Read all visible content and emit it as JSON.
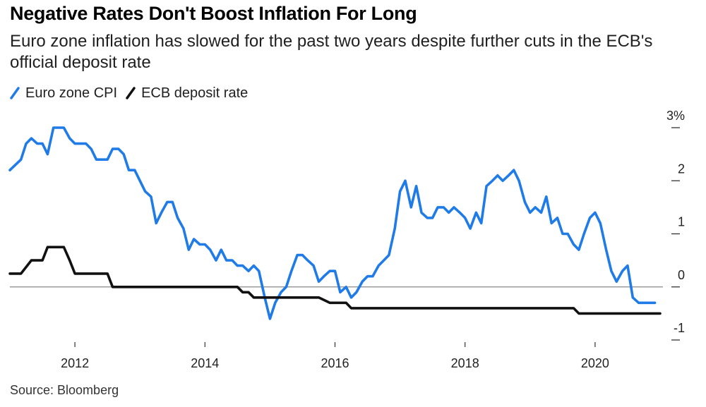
{
  "title": "Negative Rates Don't Boost Inflation For Long",
  "subtitle": "Euro zone inflation has slowed for the past two years despite further cuts in the ECB's official deposit rate",
  "source": "Source: Bloomberg",
  "colors": {
    "cpi": "#1f7be8",
    "rate": "#111111",
    "zero_line": "#888888",
    "axis": "#333333"
  },
  "chart_data": {
    "type": "line",
    "title": "Negative Rates Don't Boost Inflation For Long",
    "xlabel": "",
    "ylabel": "",
    "xlim": [
      2011.0,
      2021.0
    ],
    "ylim": [
      -1.0,
      3.0
    ],
    "x_ticks": [
      2012,
      2014,
      2016,
      2018,
      2020
    ],
    "x_tick_labels": [
      "2012",
      "2014",
      "2016",
      "2018",
      "2020"
    ],
    "y_ticks": [
      3,
      2,
      1,
      0,
      -1
    ],
    "y_tick_labels": [
      "3%",
      "2",
      "1",
      "0",
      "-1"
    ],
    "grid": false,
    "legend_position": "top-left",
    "series": [
      {
        "name": "Euro zone CPI",
        "x": [
          2011.0,
          2011.17,
          2011.25,
          2011.33,
          2011.42,
          2011.5,
          2011.58,
          2011.67,
          2011.75,
          2011.83,
          2011.92,
          2012.0,
          2012.08,
          2012.17,
          2012.25,
          2012.33,
          2012.42,
          2012.5,
          2012.58,
          2012.67,
          2012.75,
          2012.83,
          2012.92,
          2013.0,
          2013.08,
          2013.17,
          2013.25,
          2013.33,
          2013.42,
          2013.5,
          2013.58,
          2013.67,
          2013.75,
          2013.83,
          2013.92,
          2014.0,
          2014.08,
          2014.17,
          2014.25,
          2014.33,
          2014.42,
          2014.5,
          2014.58,
          2014.67,
          2014.75,
          2014.83,
          2014.92,
          2015.0,
          2015.08,
          2015.17,
          2015.25,
          2015.33,
          2015.42,
          2015.5,
          2015.58,
          2015.67,
          2015.75,
          2015.83,
          2015.92,
          2016.0,
          2016.08,
          2016.17,
          2016.25,
          2016.33,
          2016.42,
          2016.5,
          2016.58,
          2016.67,
          2016.75,
          2016.83,
          2016.92,
          2017.0,
          2017.08,
          2017.17,
          2017.25,
          2017.33,
          2017.42,
          2017.5,
          2017.58,
          2017.67,
          2017.75,
          2017.83,
          2017.92,
          2018.0,
          2018.08,
          2018.17,
          2018.25,
          2018.33,
          2018.42,
          2018.5,
          2018.58,
          2018.67,
          2018.75,
          2018.83,
          2018.92,
          2019.0,
          2019.08,
          2019.17,
          2019.25,
          2019.33,
          2019.42,
          2019.5,
          2019.58,
          2019.67,
          2019.75,
          2019.83,
          2019.92,
          2020.0,
          2020.08,
          2020.17,
          2020.25,
          2020.33,
          2020.42,
          2020.5,
          2020.58,
          2020.67,
          2020.75,
          2020.83,
          2020.92
        ],
        "values": [
          2.2,
          2.4,
          2.7,
          2.8,
          2.7,
          2.7,
          2.5,
          3.0,
          3.0,
          3.0,
          2.8,
          2.7,
          2.7,
          2.7,
          2.6,
          2.4,
          2.4,
          2.4,
          2.6,
          2.6,
          2.5,
          2.2,
          2.2,
          2.0,
          1.8,
          1.7,
          1.2,
          1.4,
          1.6,
          1.6,
          1.3,
          1.1,
          0.7,
          0.9,
          0.8,
          0.8,
          0.7,
          0.5,
          0.7,
          0.5,
          0.5,
          0.4,
          0.4,
          0.3,
          0.4,
          0.3,
          -0.2,
          -0.6,
          -0.3,
          -0.1,
          0.0,
          0.3,
          0.6,
          0.6,
          0.5,
          0.4,
          0.1,
          0.2,
          0.3,
          0.3,
          -0.1,
          0.0,
          -0.2,
          -0.1,
          0.1,
          0.2,
          0.2,
          0.4,
          0.5,
          0.6,
          1.1,
          1.8,
          2.0,
          1.5,
          1.9,
          1.4,
          1.3,
          1.3,
          1.5,
          1.5,
          1.4,
          1.5,
          1.4,
          1.3,
          1.1,
          1.4,
          1.2,
          1.9,
          2.0,
          2.1,
          2.0,
          2.1,
          2.2,
          2.0,
          1.6,
          1.4,
          1.5,
          1.4,
          1.7,
          1.2,
          1.3,
          1.0,
          1.0,
          0.8,
          0.7,
          1.0,
          1.3,
          1.4,
          1.2,
          0.7,
          0.3,
          0.1,
          0.3,
          0.4,
          -0.2,
          -0.3,
          -0.3,
          -0.3,
          -0.3
        ]
      },
      {
        "name": "ECB deposit rate",
        "x": [
          2011.0,
          2011.17,
          2011.33,
          2011.5,
          2011.58,
          2011.83,
          2011.92,
          2012.0,
          2012.17,
          2012.5,
          2012.58,
          2014.25,
          2014.5,
          2014.58,
          2014.67,
          2014.75,
          2015.75,
          2015.92,
          2016.0,
          2016.17,
          2016.25,
          2019.67,
          2019.75,
          2021.0
        ],
        "values": [
          0.25,
          0.25,
          0.5,
          0.5,
          0.75,
          0.75,
          0.5,
          0.25,
          0.25,
          0.25,
          0.0,
          0.0,
          0.0,
          -0.1,
          -0.1,
          -0.2,
          -0.2,
          -0.3,
          -0.3,
          -0.3,
          -0.4,
          -0.4,
          -0.5,
          -0.5
        ]
      }
    ]
  }
}
